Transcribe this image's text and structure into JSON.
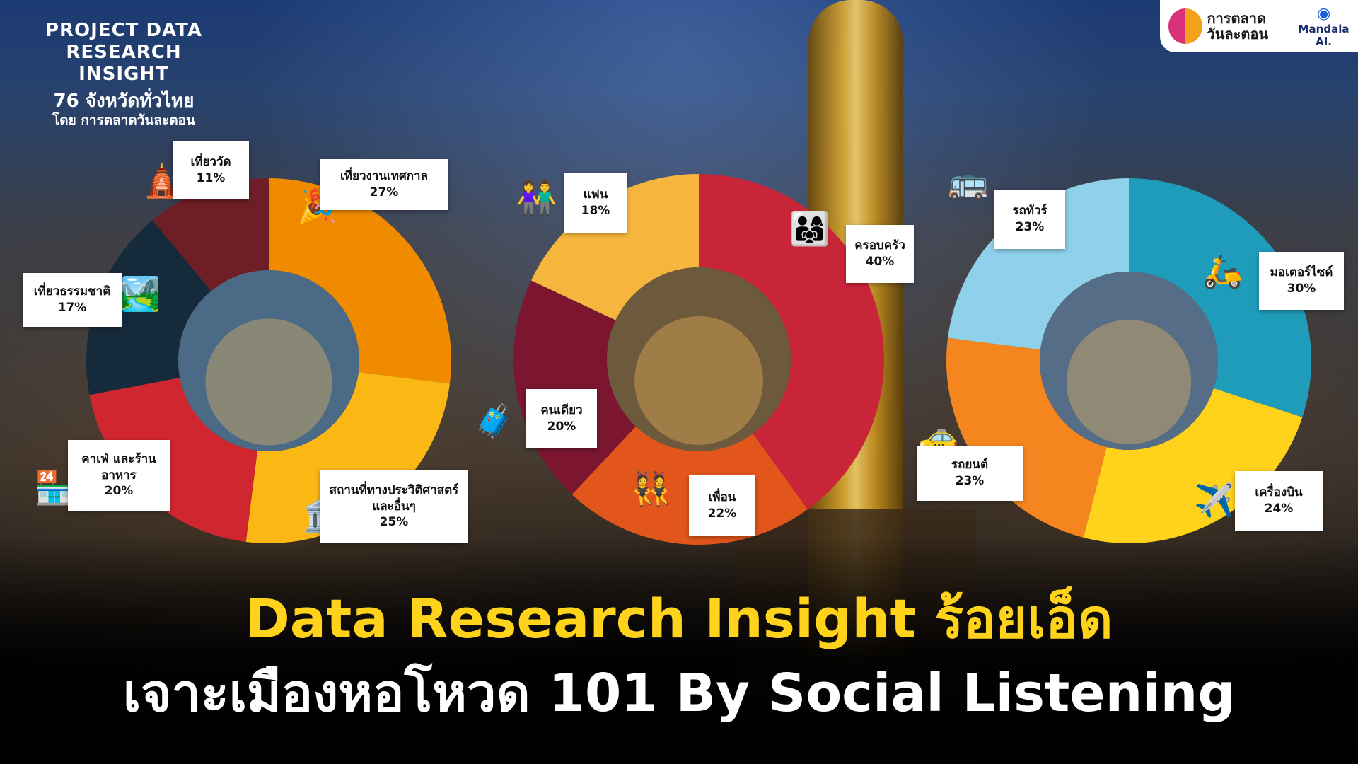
{
  "project": {
    "line1": "PROJECT DATA",
    "line2": "RESEARCH INSIGHT",
    "line3": "76 จังหวัดทั่วไทย",
    "line4": "โดย การตลาดวันละตอน"
  },
  "logos": {
    "brand": "การตลาดวันละตอน",
    "partner": "Mandala AI."
  },
  "headline": {
    "line1": "Data Research Insight ร้อยเอ็ด",
    "line2": "เจาะเมืองหอโหวด 101 By Social Listening"
  },
  "chart_data": [
    {
      "type": "pie",
      "donut": true,
      "slices": [
        {
          "label": "เที่ยวงานเทศกาล",
          "value": 27,
          "display": "27%",
          "color": "#f08b00"
        },
        {
          "label": "สถานที่ทางประวิติศาสตร์\nและอื่นๆ",
          "value": 25,
          "display": "25%",
          "color": "#fbb814"
        },
        {
          "label": "คาเฟ่ และร้าน\nอาหาร",
          "value": 20,
          "display": "20%",
          "color": "#cf2630"
        },
        {
          "label": "เที่ยวธรรมชาติ",
          "value": 17,
          "display": "17%",
          "color": "#152b3c"
        },
        {
          "label": "เที่ยววัด",
          "value": 11,
          "display": "11%",
          "color": "#6e1f25"
        }
      ]
    },
    {
      "type": "pie",
      "donut": true,
      "slices": [
        {
          "label": "ครอบครัว",
          "value": 40,
          "display": "40%",
          "color": "#c92539"
        },
        {
          "label": "เพื่อน",
          "value": 22,
          "display": "22%",
          "color": "#e2561c"
        },
        {
          "label": "คนเดียว",
          "value": 20,
          "display": "20%",
          "color": "#7b1530"
        },
        {
          "label": "แฟน",
          "value": 18,
          "display": "18%",
          "color": "#f6b63d"
        }
      ]
    },
    {
      "type": "pie",
      "donut": true,
      "slices": [
        {
          "label": "มอเตอร์ไซด์",
          "value": 30,
          "display": "30%",
          "color": "#1f9cba"
        },
        {
          "label": "เครื่องบิน",
          "value": 24,
          "display": "24%",
          "color": "#ffd21c"
        },
        {
          "label": "รถยนต์",
          "value": 23,
          "display": "23%",
          "color": "#f5851f"
        },
        {
          "label": "รถทัวร์",
          "value": 23,
          "display": "23%",
          "color": "#8fd0ea"
        }
      ]
    }
  ]
}
